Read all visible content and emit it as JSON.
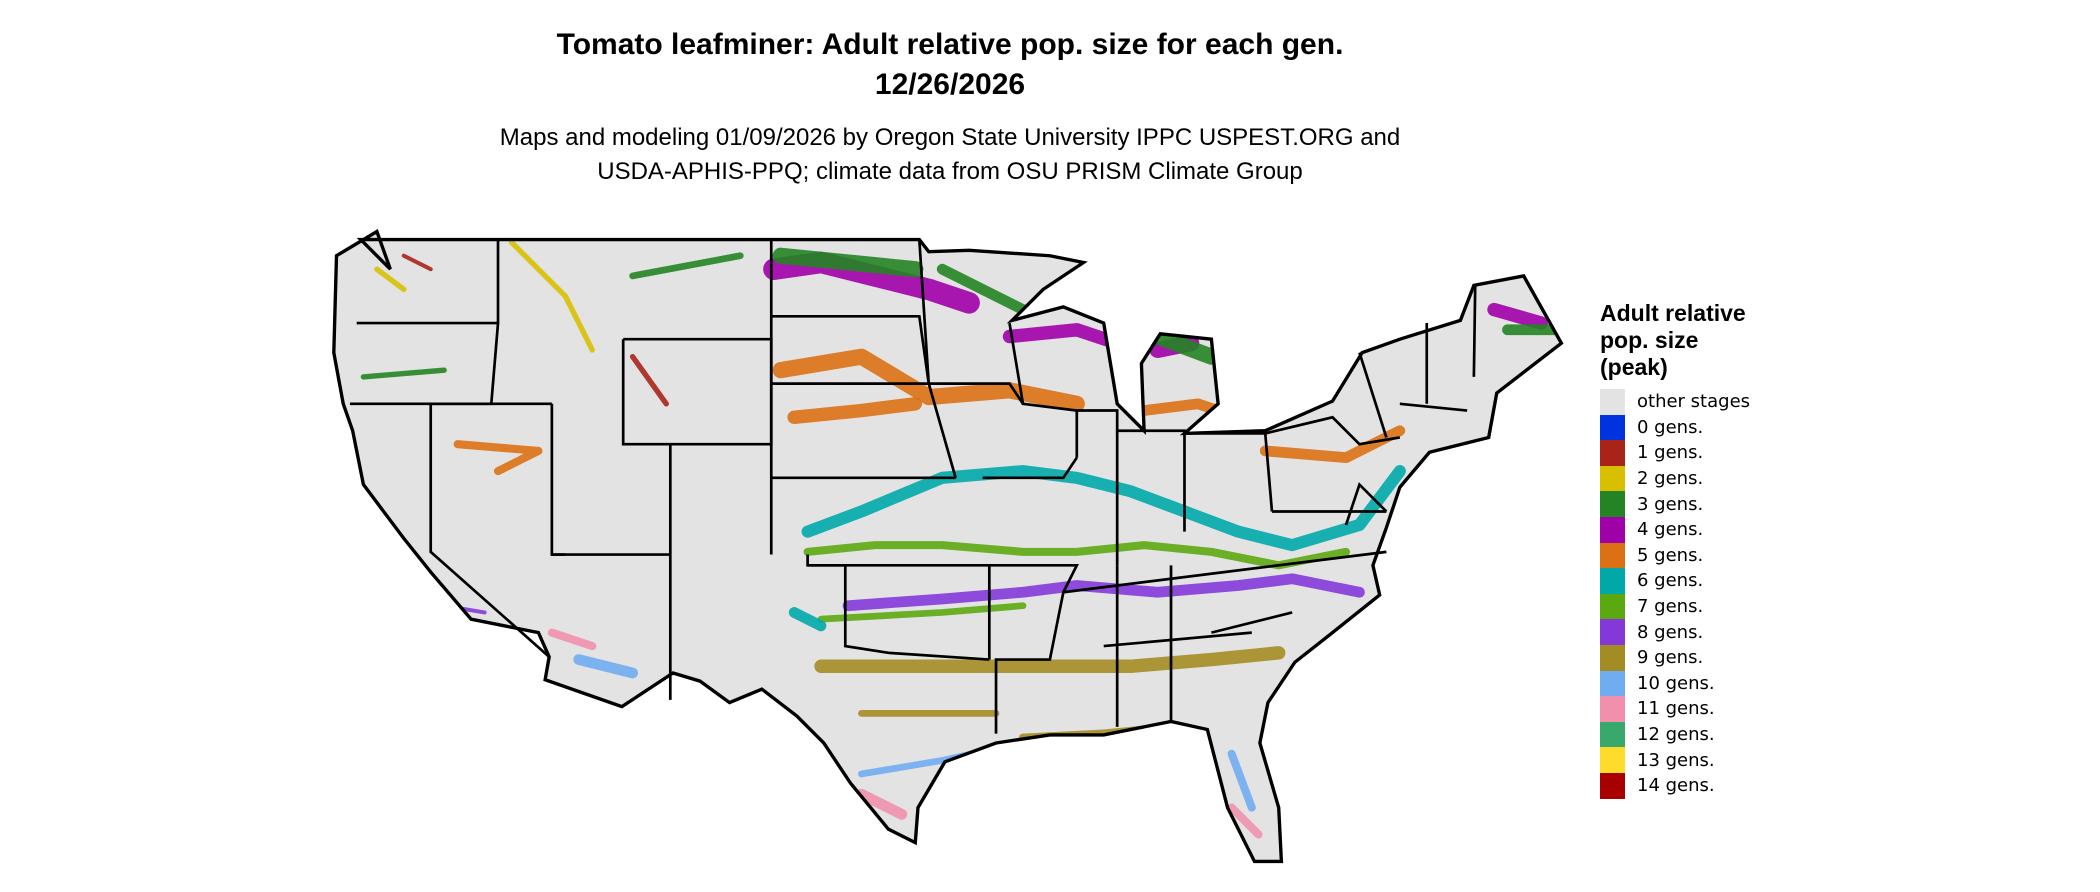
{
  "header": {
    "title": "Tomato leafminer: Adult relative pop. size for each gen.",
    "date": "12/26/2026",
    "subtitle_line1": "Maps and modeling 01/09/2026 by Oregon State University IPPC USPEST.ORG and",
    "subtitle_line2": "USDA-APHIS-PPQ; climate data from OSU PRISM Climate Group"
  },
  "legend": {
    "title_line1": "Adult relative",
    "title_line2": "pop. size",
    "title_line3": "(peak)",
    "items": [
      {
        "label": "other stages",
        "color": "#e3e3e3"
      },
      {
        "label": "0 gens.",
        "color": "#0033dd"
      },
      {
        "label": "1 gens.",
        "color": "#a82418"
      },
      {
        "label": "2 gens.",
        "color": "#d8c000"
      },
      {
        "label": "3 gens.",
        "color": "#248424"
      },
      {
        "label": "4 gens.",
        "color": "#a000a8"
      },
      {
        "label": "5 gens.",
        "color": "#dc7014"
      },
      {
        "label": "6 gens.",
        "color": "#00a8a8"
      },
      {
        "label": "7 gens.",
        "color": "#5ca810"
      },
      {
        "label": "8 gens.",
        "color": "#8438d8"
      },
      {
        "label": "9 gens.",
        "color": "#a48c24"
      },
      {
        "label": "10 gens.",
        "color": "#70acf0"
      },
      {
        "label": "11 gens.",
        "color": "#f090ac"
      },
      {
        "label": "12 gens.",
        "color": "#38a86c"
      },
      {
        "label": "13 gens.",
        "color": "#ffdc2c"
      },
      {
        "label": "14 gens.",
        "color": "#a80000"
      }
    ]
  }
}
